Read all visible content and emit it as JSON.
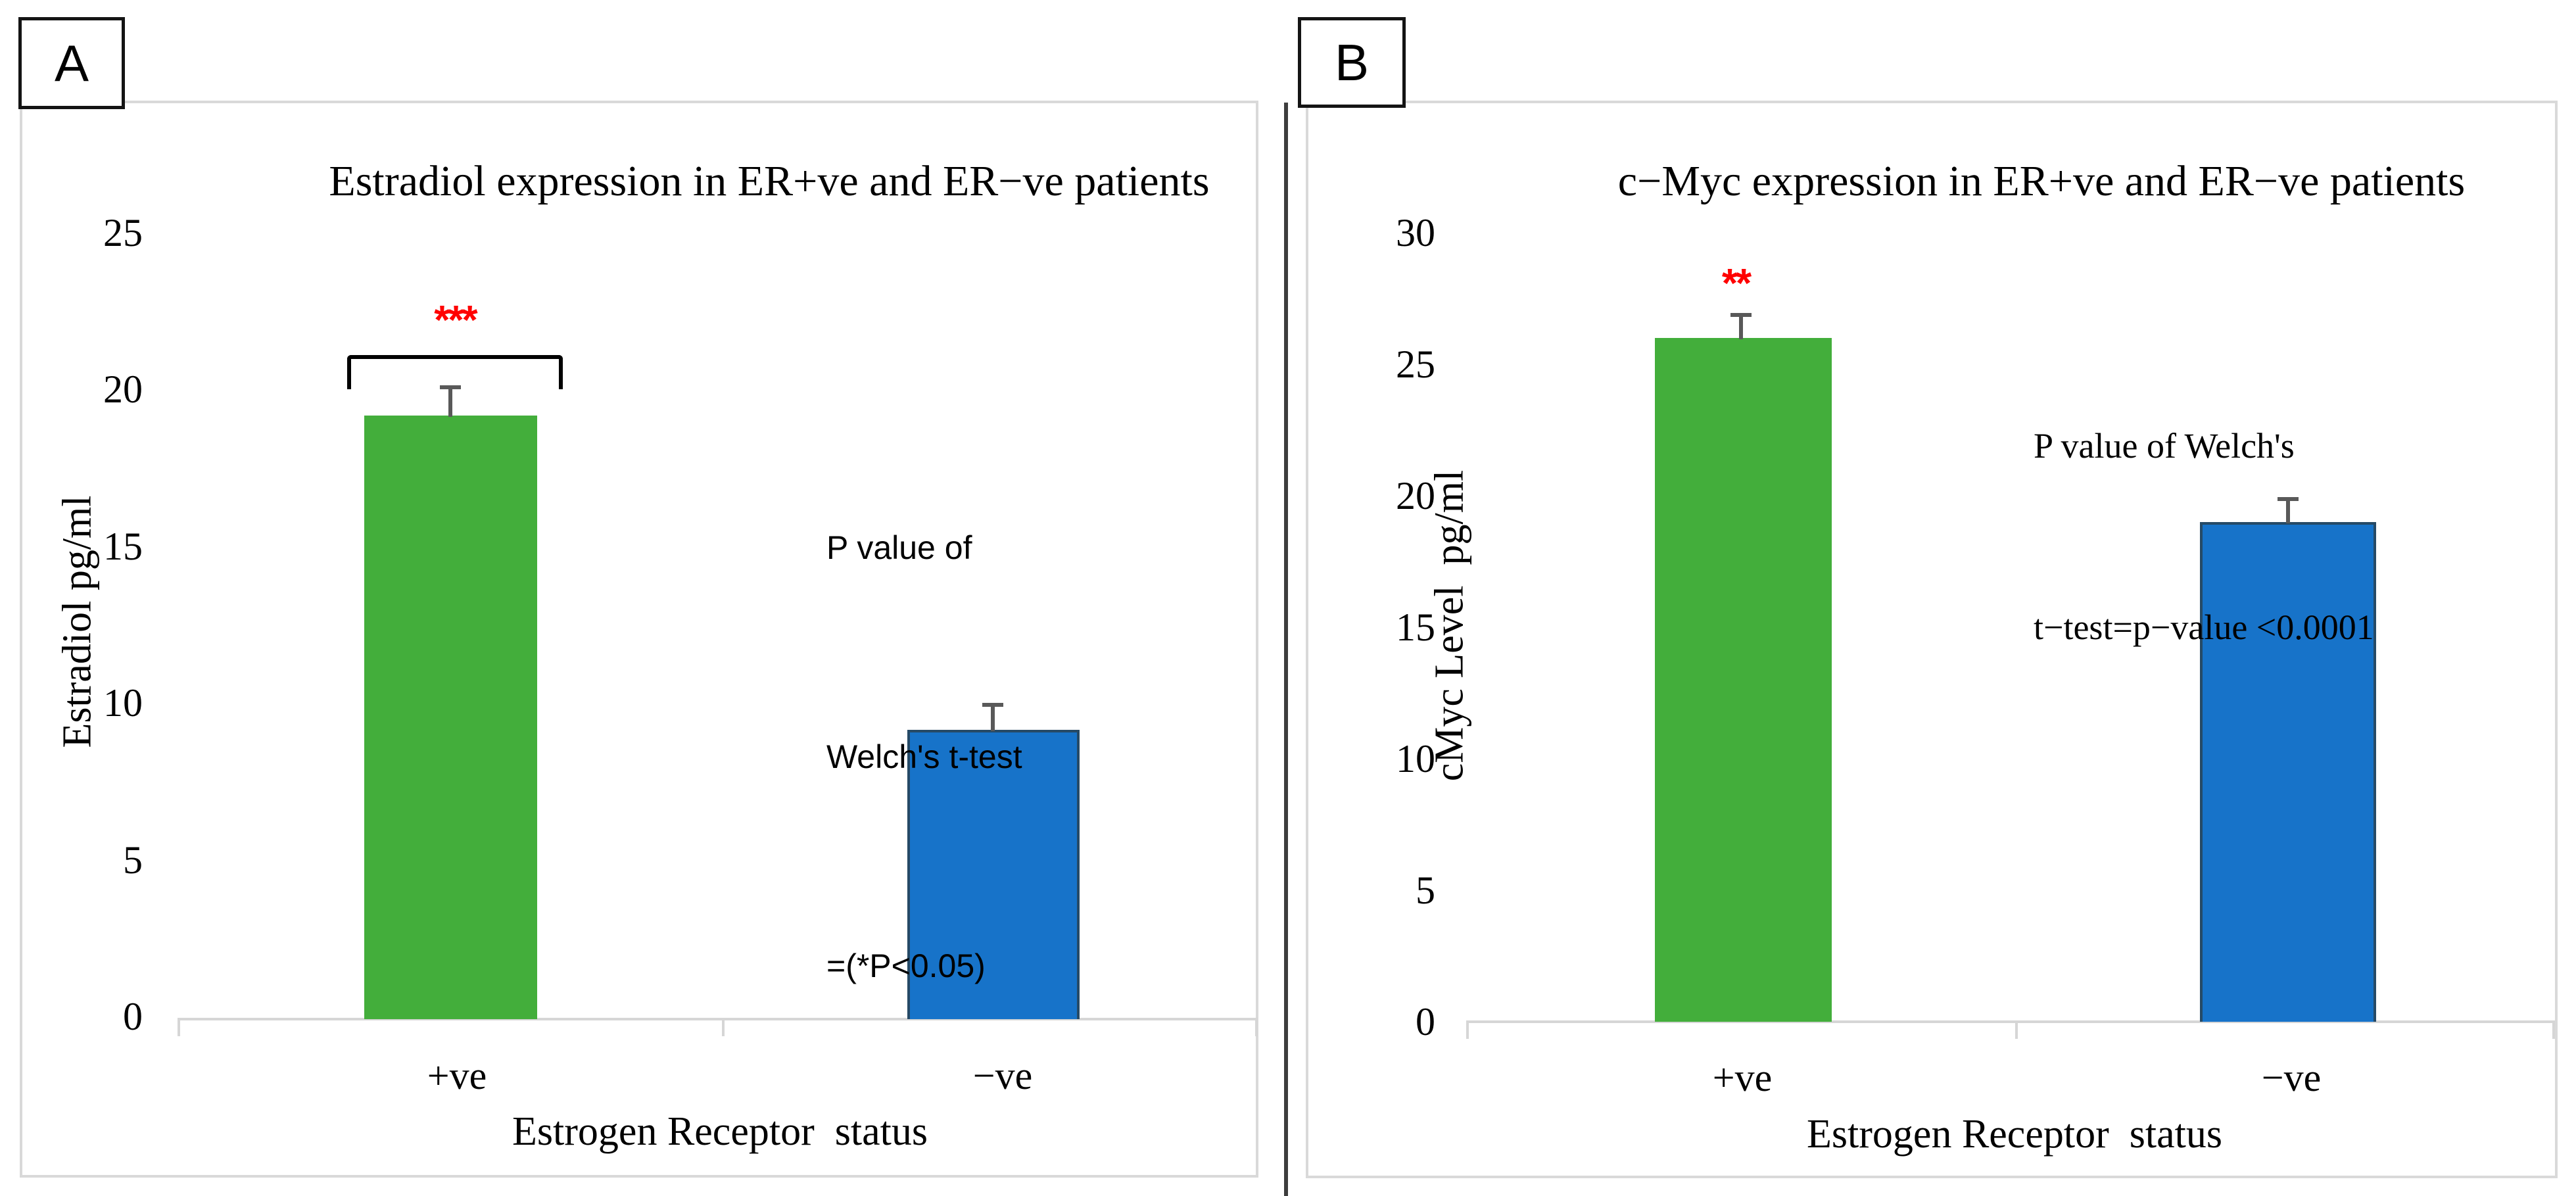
{
  "figure": {
    "panels": [
      {
        "label": "A"
      },
      {
        "label": "B"
      }
    ]
  },
  "colors": {
    "bar_green": "#43AE3B",
    "bar_blue": "#1773C9",
    "bar_blue_border": "#264A66",
    "error_bar": "#595959",
    "axis_line": "#D6D6D6",
    "panel_border": "#D9D9D9",
    "significance_red": "#FF0000",
    "divider": "#3E3E3E"
  },
  "chart_data": [
    {
      "type": "bar",
      "title": "Estradiol expression  in ER+ve and ER−ve patients",
      "categories": [
        "+ve",
        "−ve"
      ],
      "values": [
        19.2,
        9.2
      ],
      "errors": [
        1.0,
        0.9
      ],
      "bar_colors": [
        "#43AE3B",
        "#1773C9"
      ],
      "significance": "***",
      "annotation": [
        "P value of",
        "Welch's t-test",
        "=(*P<0.05)"
      ],
      "xlabel": "Estrogen Receptor  status",
      "ylabel": "Estradiol pg/ml",
      "ylim": [
        0,
        25
      ],
      "ytick_step": 5,
      "yticks": [
        "25",
        "20",
        "15",
        "10",
        "5",
        "0"
      ],
      "grid": "off",
      "legend": "none"
    },
    {
      "type": "bar",
      "title": "c−Myc expression  in ER+ve and ER−ve patients",
      "categories": [
        "+ve",
        "−ve"
      ],
      "values": [
        26,
        19
      ],
      "errors": [
        1.0,
        1.0
      ],
      "bar_colors": [
        "#43AE3B",
        "#1773C9"
      ],
      "significance": "**",
      "annotation": [
        "P value of Welch's",
        "t−test=p−value <0.0001"
      ],
      "xlabel": "Estrogen Receptor  status",
      "ylabel": "cMyc Level  pg/ml",
      "ylim": [
        0,
        30
      ],
      "ytick_step": 5,
      "yticks": [
        "30",
        "25",
        "20",
        "15",
        "10",
        "5",
        "0"
      ],
      "grid": "off",
      "legend": "none"
    }
  ]
}
